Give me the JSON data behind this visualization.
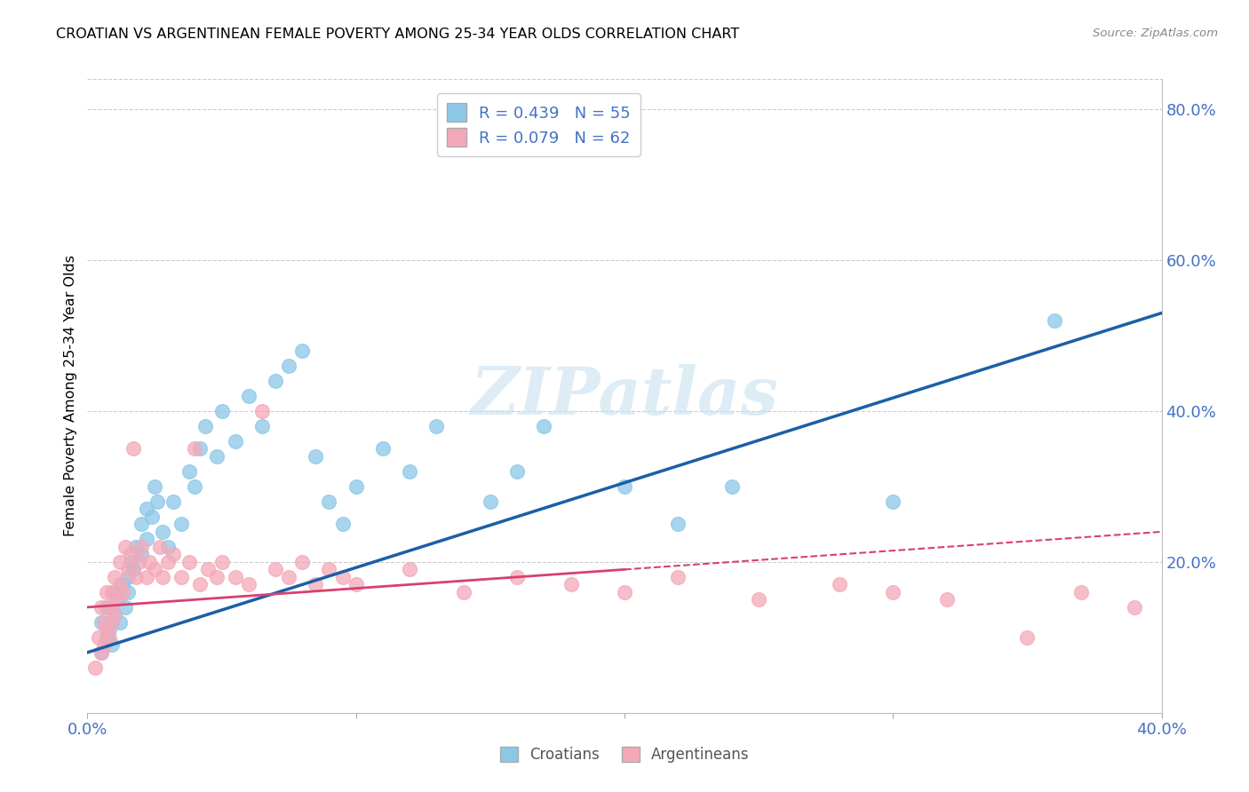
{
  "title": "CROATIAN VS ARGENTINEAN FEMALE POVERTY AMONG 25-34 YEAR OLDS CORRELATION CHART",
  "source": "Source: ZipAtlas.com",
  "ylabel_label": "Female Poverty Among 25-34 Year Olds",
  "xlim": [
    0.0,
    0.4
  ],
  "ylim": [
    0.0,
    0.84
  ],
  "background_color": "#ffffff",
  "grid_color": "#cccccc",
  "watermark_text": "ZIPatlas",
  "croatian_color": "#8BC8E8",
  "argentinean_color": "#F4A8B8",
  "croatian_line_color": "#1A5FA8",
  "argentinean_line_color": "#D84070",
  "croatian_R": 0.439,
  "croatian_N": 55,
  "argentinean_R": 0.079,
  "argentinean_N": 62,
  "tick_color": "#4472C4",
  "croatian_scatter_x": [
    0.005,
    0.005,
    0.007,
    0.007,
    0.008,
    0.009,
    0.01,
    0.01,
    0.011,
    0.012,
    0.013,
    0.014,
    0.015,
    0.015,
    0.016,
    0.017,
    0.018,
    0.02,
    0.02,
    0.022,
    0.022,
    0.024,
    0.025,
    0.026,
    0.028,
    0.03,
    0.032,
    0.035,
    0.038,
    0.04,
    0.042,
    0.044,
    0.048,
    0.05,
    0.055,
    0.06,
    0.065,
    0.07,
    0.075,
    0.08,
    0.085,
    0.09,
    0.095,
    0.1,
    0.11,
    0.12,
    0.13,
    0.15,
    0.16,
    0.17,
    0.2,
    0.22,
    0.24,
    0.3,
    0.36
  ],
  "croatian_scatter_y": [
    0.08,
    0.12,
    0.1,
    0.14,
    0.11,
    0.09,
    0.16,
    0.13,
    0.15,
    0.12,
    0.17,
    0.14,
    0.18,
    0.16,
    0.2,
    0.19,
    0.22,
    0.21,
    0.25,
    0.23,
    0.27,
    0.26,
    0.3,
    0.28,
    0.24,
    0.22,
    0.28,
    0.25,
    0.32,
    0.3,
    0.35,
    0.38,
    0.34,
    0.4,
    0.36,
    0.42,
    0.38,
    0.44,
    0.46,
    0.48,
    0.34,
    0.28,
    0.25,
    0.3,
    0.35,
    0.32,
    0.38,
    0.28,
    0.32,
    0.38,
    0.3,
    0.25,
    0.3,
    0.28,
    0.52
  ],
  "argentinean_scatter_x": [
    0.003,
    0.004,
    0.005,
    0.005,
    0.006,
    0.006,
    0.007,
    0.007,
    0.008,
    0.008,
    0.009,
    0.009,
    0.01,
    0.01,
    0.011,
    0.012,
    0.012,
    0.013,
    0.014,
    0.015,
    0.016,
    0.017,
    0.018,
    0.019,
    0.02,
    0.022,
    0.023,
    0.025,
    0.027,
    0.028,
    0.03,
    0.032,
    0.035,
    0.038,
    0.04,
    0.042,
    0.045,
    0.048,
    0.05,
    0.055,
    0.06,
    0.065,
    0.07,
    0.075,
    0.08,
    0.085,
    0.09,
    0.095,
    0.1,
    0.12,
    0.14,
    0.16,
    0.18,
    0.2,
    0.22,
    0.25,
    0.28,
    0.3,
    0.32,
    0.35,
    0.37,
    0.39
  ],
  "argentinean_scatter_y": [
    0.06,
    0.1,
    0.08,
    0.14,
    0.09,
    0.12,
    0.11,
    0.16,
    0.1,
    0.14,
    0.12,
    0.16,
    0.13,
    0.18,
    0.15,
    0.17,
    0.2,
    0.16,
    0.22,
    0.19,
    0.21,
    0.35,
    0.18,
    0.2,
    0.22,
    0.18,
    0.2,
    0.19,
    0.22,
    0.18,
    0.2,
    0.21,
    0.18,
    0.2,
    0.35,
    0.17,
    0.19,
    0.18,
    0.2,
    0.18,
    0.17,
    0.4,
    0.19,
    0.18,
    0.2,
    0.17,
    0.19,
    0.18,
    0.17,
    0.19,
    0.16,
    0.18,
    0.17,
    0.16,
    0.18,
    0.15,
    0.17,
    0.16,
    0.15,
    0.1,
    0.16,
    0.14
  ]
}
